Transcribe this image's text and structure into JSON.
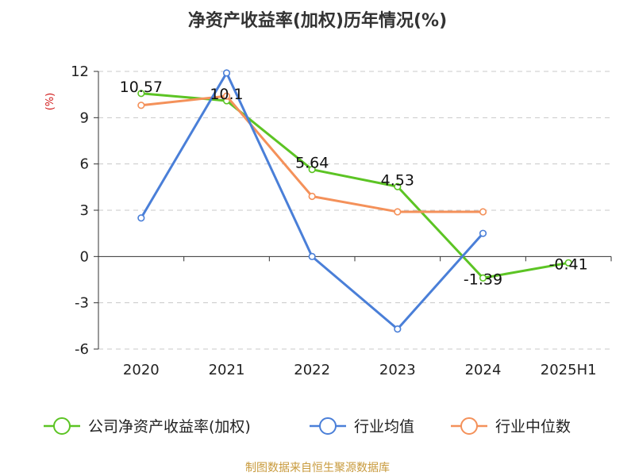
{
  "chart_data": {
    "type": "line",
    "title": "净资产收益率(加权)历年情况(%)",
    "ylabel": "(%)",
    "categories": [
      "2020",
      "2021",
      "2022",
      "2023",
      "2024",
      "2025H1"
    ],
    "ylim": [
      -6,
      12
    ],
    "yticks": [
      "-6",
      "-3",
      "0",
      "3",
      "6",
      "9",
      "12"
    ],
    "grid": true,
    "legend_position": "bottom",
    "series": [
      {
        "name": "公司净资产收益率(加权)",
        "color": "#5cc424",
        "values": [
          10.57,
          10.1,
          5.64,
          4.53,
          -1.39,
          -0.41
        ],
        "labels": [
          "10.57",
          "10.1",
          "5.64",
          "4.53",
          "-1.39",
          "-0.41"
        ]
      },
      {
        "name": "行业均值",
        "color": "#4a7fd8",
        "values": [
          2.5,
          11.9,
          0.0,
          -4.7,
          1.5,
          null
        ]
      },
      {
        "name": "行业中位数",
        "color": "#f4915a",
        "values": [
          9.8,
          10.4,
          3.9,
          2.9,
          2.9,
          null
        ]
      }
    ],
    "source": "制图数据来自恒生聚源数据库"
  }
}
